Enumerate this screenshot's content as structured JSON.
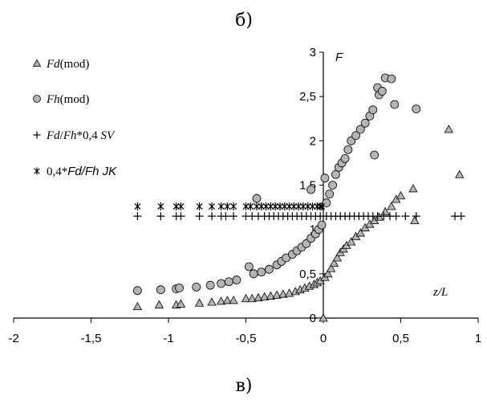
{
  "panel_label_top": "б)",
  "panel_label_bottom": "в)",
  "chart_data": {
    "type": "scatter",
    "x_axis_title": "z/L",
    "y_axis_title": "F",
    "xlim": [
      -2,
      1
    ],
    "ylim": [
      0,
      3
    ],
    "x_ticks": [
      "-2",
      "-1,5",
      "-1",
      "-0,5",
      "0",
      "0,5",
      "1"
    ],
    "y_ticks": [
      "0",
      "0,5",
      "1",
      "1,5",
      "2",
      "2,5",
      "3"
    ],
    "grid": false,
    "legend_placement": "top-left",
    "series": [
      {
        "name": "Fd(mod)",
        "legend_parts": [
          {
            "t": "Fd",
            "i": true
          },
          {
            "t": "(mod)",
            "i": false
          }
        ],
        "marker": "triangle",
        "color": "#b4b4b4",
        "points": [
          [
            -1.2,
            0.13
          ],
          [
            -1.06,
            0.15
          ],
          [
            -0.95,
            0.15
          ],
          [
            -0.92,
            0.16
          ],
          [
            -0.8,
            0.17
          ],
          [
            -0.72,
            0.18
          ],
          [
            -0.66,
            0.19
          ],
          [
            -0.62,
            0.2
          ],
          [
            -0.58,
            0.2
          ],
          [
            -0.5,
            0.22
          ],
          [
            -0.46,
            0.22
          ],
          [
            -0.42,
            0.23
          ],
          [
            -0.38,
            0.24
          ],
          [
            -0.34,
            0.25
          ],
          [
            -0.3,
            0.26
          ],
          [
            -0.26,
            0.27
          ],
          [
            -0.22,
            0.28
          ],
          [
            -0.18,
            0.3
          ],
          [
            -0.15,
            0.32
          ],
          [
            -0.12,
            0.34
          ],
          [
            -0.09,
            0.36
          ],
          [
            -0.06,
            0.38
          ],
          [
            -0.04,
            0.4
          ],
          [
            -0.02,
            0.42
          ],
          [
            0.0,
            0.0
          ],
          [
            0.01,
            0.46
          ],
          [
            0.03,
            0.5
          ],
          [
            0.05,
            0.56
          ],
          [
            0.07,
            0.62
          ],
          [
            0.09,
            0.68
          ],
          [
            0.11,
            0.74
          ],
          [
            0.13,
            0.78
          ],
          [
            0.15,
            0.82
          ],
          [
            0.18,
            0.86
          ],
          [
            0.21,
            0.92
          ],
          [
            0.24,
            0.96
          ],
          [
            0.27,
            1.02
          ],
          [
            0.3,
            1.06
          ],
          [
            0.33,
            1.1
          ],
          [
            0.36,
            1.14
          ],
          [
            0.4,
            1.2
          ],
          [
            0.44,
            1.26
          ],
          [
            0.47,
            1.34
          ],
          [
            0.5,
            1.38
          ],
          [
            0.58,
            1.46
          ],
          [
            0.59,
            1.1
          ],
          [
            0.81,
            2.13
          ],
          [
            0.88,
            1.62
          ]
        ]
      },
      {
        "name": "Fh(mod)",
        "legend_parts": [
          {
            "t": "Fh",
            "i": true
          },
          {
            "t": "(mod)",
            "i": false
          }
        ],
        "marker": "circle",
        "color": "#b4b4b4",
        "points": [
          [
            -1.2,
            0.31
          ],
          [
            -1.05,
            0.32
          ],
          [
            -0.95,
            0.33
          ],
          [
            -0.93,
            0.34
          ],
          [
            -0.82,
            0.35
          ],
          [
            -0.73,
            0.37
          ],
          [
            -0.66,
            0.39
          ],
          [
            -0.61,
            0.41
          ],
          [
            -0.56,
            0.43
          ],
          [
            -0.48,
            0.58
          ],
          [
            -0.45,
            0.5
          ],
          [
            -0.4,
            0.52
          ],
          [
            -0.35,
            0.55
          ],
          [
            -0.3,
            0.6
          ],
          [
            -0.27,
            0.64
          ],
          [
            -0.24,
            0.68
          ],
          [
            -0.2,
            0.72
          ],
          [
            -0.17,
            0.76
          ],
          [
            -0.14,
            0.8
          ],
          [
            -0.11,
            0.84
          ],
          [
            -0.08,
            0.9
          ],
          [
            -0.05,
            0.95
          ],
          [
            -0.03,
            1.0
          ],
          [
            -0.01,
            1.05
          ],
          [
            0.02,
            1.3
          ],
          [
            0.04,
            1.4
          ],
          [
            0.06,
            1.5
          ],
          [
            0.08,
            1.62
          ],
          [
            0.1,
            1.7
          ],
          [
            0.12,
            1.75
          ],
          [
            0.14,
            1.8
          ],
          [
            0.16,
            1.9
          ],
          [
            0.18,
            2.0
          ],
          [
            0.21,
            2.06
          ],
          [
            0.24,
            2.13
          ],
          [
            0.27,
            2.2
          ],
          [
            0.3,
            2.28
          ],
          [
            0.32,
            2.35
          ],
          [
            0.33,
            1.84
          ],
          [
            0.36,
            2.52
          ],
          [
            0.35,
            2.6
          ],
          [
            0.38,
            2.56
          ],
          [
            0.4,
            2.71
          ],
          [
            0.44,
            2.7
          ],
          [
            0.46,
            2.41
          ],
          [
            0.6,
            2.36
          ],
          [
            -0.43,
            1.35
          ],
          [
            -0.08,
            1.45
          ],
          [
            0.01,
            1.58
          ]
        ]
      },
      {
        "name": "Fd/Fh*0,4 SV",
        "legend_parts": [
          {
            "t": "Fd",
            "i": true
          },
          {
            "t": "/",
            "i": false
          },
          {
            "t": "Fh",
            "i": true
          },
          {
            "t": "*0,4  ",
            "i": false
          },
          {
            "t": "SV",
            "i": true
          }
        ],
        "marker": "plus",
        "color": "#000000",
        "points": [
          [
            -1.2,
            1.15
          ],
          [
            -1.05,
            1.15
          ],
          [
            -0.95,
            1.15
          ],
          [
            -0.92,
            1.15
          ],
          [
            -0.8,
            1.15
          ],
          [
            -0.72,
            1.15
          ],
          [
            -0.66,
            1.15
          ],
          [
            -0.63,
            1.15
          ],
          [
            -0.58,
            1.15
          ],
          [
            -0.5,
            1.15
          ],
          [
            -0.46,
            1.15
          ],
          [
            -0.42,
            1.15
          ],
          [
            -0.38,
            1.15
          ],
          [
            -0.35,
            1.15
          ],
          [
            -0.32,
            1.15
          ],
          [
            -0.29,
            1.15
          ],
          [
            -0.26,
            1.15
          ],
          [
            -0.23,
            1.15
          ],
          [
            -0.2,
            1.15
          ],
          [
            -0.17,
            1.15
          ],
          [
            -0.14,
            1.15
          ],
          [
            -0.11,
            1.15
          ],
          [
            -0.08,
            1.15
          ],
          [
            -0.05,
            1.15
          ],
          [
            -0.02,
            1.15
          ],
          [
            0.02,
            1.15
          ],
          [
            0.05,
            1.15
          ],
          [
            0.08,
            1.15
          ],
          [
            0.11,
            1.15
          ],
          [
            0.14,
            1.15
          ],
          [
            0.17,
            1.15
          ],
          [
            0.2,
            1.15
          ],
          [
            0.23,
            1.15
          ],
          [
            0.26,
            1.15
          ],
          [
            0.29,
            1.15
          ],
          [
            0.32,
            1.15
          ],
          [
            0.35,
            1.15
          ],
          [
            0.39,
            1.15
          ],
          [
            0.43,
            1.15
          ],
          [
            0.47,
            1.15
          ],
          [
            0.53,
            1.15
          ],
          [
            0.6,
            1.15
          ],
          [
            0.85,
            1.15
          ],
          [
            0.89,
            1.15
          ]
        ]
      },
      {
        "name": "0,4*Fd/Fh JK",
        "legend_parts": [
          {
            "t": "0,4*",
            "i": false
          },
          {
            "t": "Fd/Fh  JK",
            "i": true,
            "sans": true
          }
        ],
        "marker": "asterisk",
        "color": "#000000",
        "points": [
          [
            -1.2,
            1.26
          ],
          [
            -1.05,
            1.26
          ],
          [
            -0.95,
            1.26
          ],
          [
            -0.92,
            1.26
          ],
          [
            -0.8,
            1.26
          ],
          [
            -0.72,
            1.26
          ],
          [
            -0.66,
            1.26
          ],
          [
            -0.62,
            1.26
          ],
          [
            -0.58,
            1.26
          ],
          [
            -0.5,
            1.26
          ],
          [
            -0.47,
            1.26
          ],
          [
            -0.43,
            1.26
          ],
          [
            -0.4,
            1.26
          ],
          [
            -0.37,
            1.26
          ],
          [
            -0.34,
            1.26
          ],
          [
            -0.31,
            1.26
          ],
          [
            -0.28,
            1.26
          ],
          [
            -0.25,
            1.26
          ],
          [
            -0.22,
            1.26
          ],
          [
            -0.19,
            1.26
          ],
          [
            -0.16,
            1.26
          ],
          [
            -0.13,
            1.26
          ],
          [
            -0.1,
            1.26
          ],
          [
            -0.07,
            1.26
          ],
          [
            -0.04,
            1.26
          ],
          [
            -0.02,
            1.26
          ],
          [
            -0.01,
            1.26
          ]
        ]
      }
    ]
  }
}
